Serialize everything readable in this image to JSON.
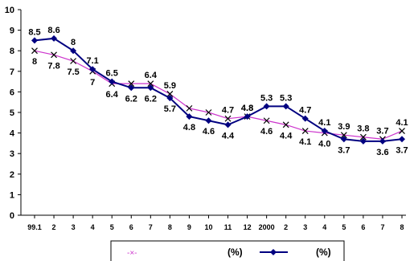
{
  "chart_data": {
    "type": "line",
    "categories": [
      "99.1",
      "2",
      "3",
      "4",
      "5",
      "6",
      "7",
      "8",
      "9",
      "10",
      "11",
      "12",
      "2000",
      "2",
      "3",
      "4",
      "5",
      "6",
      "7",
      "8"
    ],
    "ylim": [
      0,
      10
    ],
    "yticks": [
      "0",
      "1",
      "2",
      "3",
      "4",
      "5",
      "6",
      "7",
      "8",
      "9",
      "10"
    ],
    "grid": false,
    "legend_position": "bottom",
    "series": [
      {
        "name": "(%)",
        "legend_marker_label": "-×-",
        "color": "#cc33cc",
        "marker": "x",
        "values": [
          8,
          7.8,
          7.5,
          7,
          6.4,
          6.4,
          6.4,
          5.9,
          5.2,
          5,
          4.7,
          4.8,
          4.6,
          4.4,
          4.1,
          4.0,
          3.9,
          3.8,
          3.7,
          4.1
        ],
        "labels": [
          "8",
          "7.8",
          "7.5",
          "7",
          "6.4",
          "",
          "6.4",
          "5.9",
          "",
          "",
          "4.7",
          "4.8",
          "4.6",
          "4.4",
          "4.1",
          "4.0",
          "3.9",
          "3.8",
          "3.7",
          "4.1"
        ]
      },
      {
        "name": "(%)",
        "color": "#000080",
        "marker": "diamond",
        "values": [
          8.5,
          8.6,
          8,
          7.1,
          6.5,
          6.2,
          6.2,
          5.7,
          4.8,
          4.6,
          4.4,
          4.8,
          5.3,
          5.3,
          4.7,
          4.1,
          3.7,
          3.6,
          3.6,
          3.7
        ],
        "labels": [
          "8.5",
          "8.6",
          "8",
          "7.1",
          "6.5",
          "6.2",
          "6.2",
          "5.7",
          "4.8",
          "4.6",
          "4.4",
          "4.8",
          "5.3",
          "5.3",
          "4.7",
          "4.1",
          "3.7",
          "",
          "3.6",
          "3.7"
        ]
      }
    ]
  }
}
